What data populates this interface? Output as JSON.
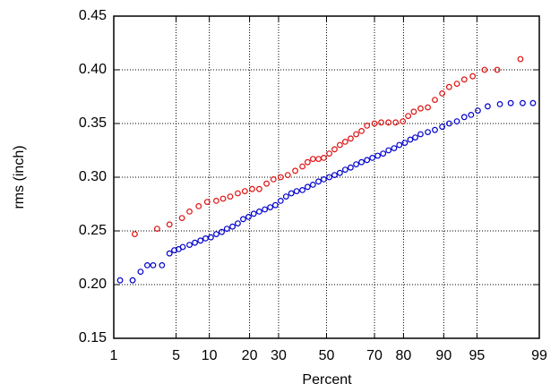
{
  "chart_data": {
    "type": "scatter",
    "xscale": "probability",
    "grid": true,
    "xlabel": "Percent",
    "ylabel": "rms (inch)",
    "xlim": [
      1,
      99
    ],
    "xticks": [
      1,
      5,
      10,
      20,
      30,
      50,
      70,
      80,
      90,
      95,
      99
    ],
    "ylim": [
      0.15,
      0.45
    ],
    "yticks": [
      0.15,
      {
        "value": 0.2,
        "label": "0.20"
      },
      0.25,
      {
        "value": 0.3,
        "label": "0.30"
      },
      0.35,
      {
        "value": 0.4,
        "label": "0.40"
      },
      0.45
    ],
    "series": [
      {
        "color": "#0000cc",
        "x": [
          1.2,
          1.7,
          2.1,
          2.5,
          2.9,
          3.6,
          4.3,
          4.8,
          5.3,
          5.8,
          6.7,
          7.5,
          8.4,
          9.3,
          10.3,
          11.4,
          12.6,
          13.8,
          15.2,
          16.6,
          18.1,
          19.7,
          21.3,
          23.1,
          25.0,
          26.9,
          28.8,
          30.8,
          32.9,
          35.0,
          37.2,
          39.6,
          41.8,
          44.1,
          46.5,
          48.8,
          51.2,
          53.5,
          55.8,
          58.1,
          60.4,
          62.7,
          64.9,
          67.1,
          69.2,
          71.2,
          73.2,
          75.1,
          77.0,
          78.7,
          80.4,
          82.0,
          83.4,
          84.8,
          86.6,
          88.2,
          89.7,
          91.0,
          92.3,
          93.4,
          94.3,
          95.1,
          96.1,
          97.1,
          97.8,
          98.4,
          98.8
        ],
        "values": [
          0.204,
          0.204,
          0.212,
          0.218,
          0.218,
          0.218,
          0.229,
          0.232,
          0.233,
          0.235,
          0.237,
          0.239,
          0.241,
          0.243,
          0.244,
          0.247,
          0.249,
          0.252,
          0.254,
          0.257,
          0.261,
          0.263,
          0.266,
          0.268,
          0.27,
          0.272,
          0.274,
          0.278,
          0.282,
          0.285,
          0.287,
          0.288,
          0.291,
          0.293,
          0.296,
          0.298,
          0.3,
          0.302,
          0.304,
          0.307,
          0.309,
          0.312,
          0.314,
          0.316,
          0.318,
          0.32,
          0.322,
          0.325,
          0.327,
          0.33,
          0.332,
          0.335,
          0.337,
          0.34,
          0.342,
          0.344,
          0.347,
          0.35,
          0.352,
          0.356,
          0.358,
          0.362,
          0.366,
          0.368,
          0.369,
          0.369,
          0.369
        ]
      },
      {
        "color": "#dd1111",
        "x": [
          1.8,
          3.2,
          4.3,
          5.7,
          6.7,
          8.1,
          9.6,
          11.4,
          12.9,
          14.6,
          16.6,
          18.6,
          20.8,
          23.1,
          25.6,
          28.1,
          30.8,
          33.6,
          36.6,
          39.6,
          41.8,
          44.1,
          46.5,
          48.8,
          51.2,
          53.5,
          55.8,
          58.1,
          60.4,
          62.7,
          64.9,
          67.1,
          70.0,
          72.5,
          75.1,
          77.5,
          79.8,
          81.4,
          83.0,
          84.8,
          86.6,
          88.2,
          89.7,
          91.0,
          92.3,
          93.4,
          94.5,
          95.8,
          96.9,
          98.3
        ],
        "values": [
          0.247,
          0.252,
          0.256,
          0.262,
          0.268,
          0.273,
          0.277,
          0.278,
          0.28,
          0.282,
          0.285,
          0.287,
          0.289,
          0.289,
          0.294,
          0.298,
          0.3,
          0.302,
          0.306,
          0.31,
          0.314,
          0.317,
          0.317,
          0.318,
          0.322,
          0.326,
          0.33,
          0.333,
          0.336,
          0.34,
          0.343,
          0.348,
          0.35,
          0.351,
          0.351,
          0.351,
          0.352,
          0.357,
          0.361,
          0.364,
          0.365,
          0.372,
          0.378,
          0.384,
          0.387,
          0.391,
          0.394,
          0.4,
          0.4,
          0.41
        ]
      }
    ]
  }
}
